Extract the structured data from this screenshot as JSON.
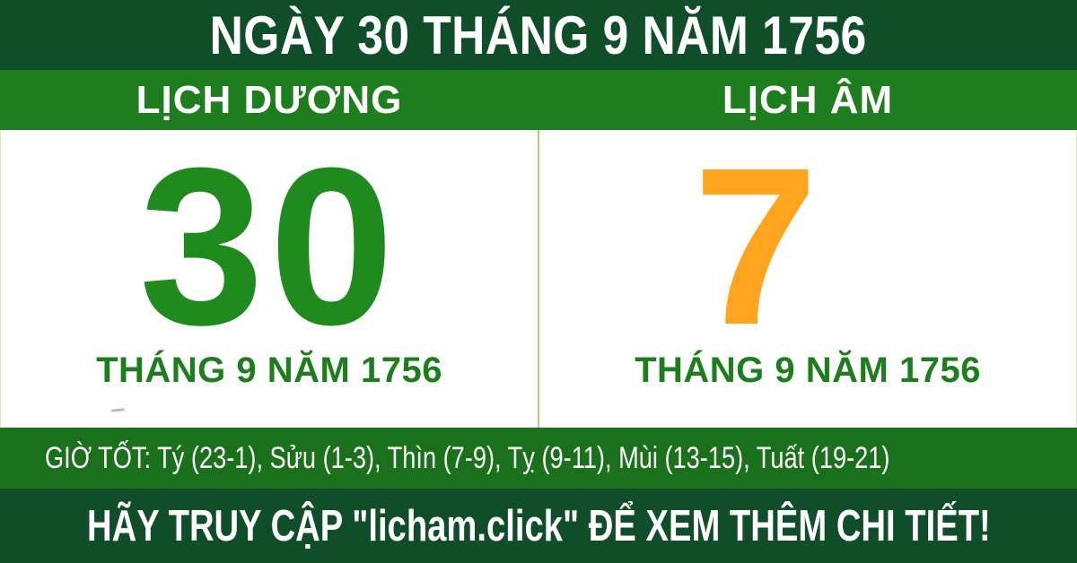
{
  "header": {
    "title": "NGÀY 30 THÁNG 9 NĂM 1756"
  },
  "calendars": {
    "solar": {
      "label": "LỊCH DƯƠNG",
      "day": "30",
      "caption": "THÁNG 9 NĂM 1756"
    },
    "lunar": {
      "label": "LỊCH ÂM",
      "day": "7",
      "caption": "THÁNG 9 NĂM 1756"
    }
  },
  "good_hours": {
    "label": "GIỜ TỐT:",
    "hours_text": "Tý (23-1), Sửu (1-3), Thìn (7-9), Tỵ (9-11), Mùi (13-15), Tuất (19-21)",
    "slots": [
      {
        "name": "Tý",
        "range": "23-1"
      },
      {
        "name": "Sửu",
        "range": "1-3"
      },
      {
        "name": "Thìn",
        "range": "7-9"
      },
      {
        "name": "Tỵ",
        "range": "9-11"
      },
      {
        "name": "Mùi",
        "range": "13-15"
      },
      {
        "name": "Tuất",
        "range": "19-21"
      }
    ]
  },
  "footer": {
    "text": "HÃY TRUY CẬP \"licham.click\" ĐỂ XEM THÊM CHI TIẾT!"
  },
  "colors": {
    "dark-green": "#0f4e28",
    "bright-green": "#1e7d1e",
    "hours-green": "#1a701b",
    "solar-day": "#1f8b1f",
    "lunar-day": "#ffa41e",
    "caption-green": "#1e7e1e",
    "divider-green": "#a6d46a",
    "text-white": "#ffffff"
  }
}
